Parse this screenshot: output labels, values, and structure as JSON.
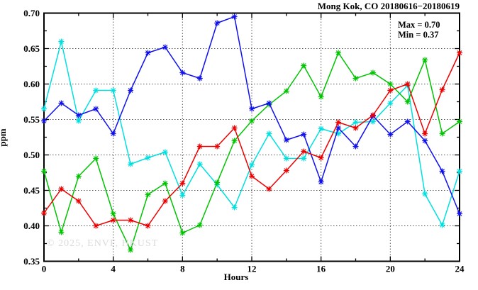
{
  "title": "Mong Kok, CO 20180616−20180619",
  "legend": {
    "max_label": "Max = 0.70",
    "min_label": "Min = 0.37"
  },
  "watermark": "© 2025, ENVF, HKUST",
  "chart_data": {
    "type": "line",
    "title": "Mong Kok, CO 20180616−20180619",
    "xlabel": "Hours",
    "ylabel": "ppm",
    "xlim": [
      0,
      24
    ],
    "ylim": [
      0.35,
      0.7
    ],
    "grid": true,
    "legend_position": "top-right-inside",
    "annotations": [
      "Max = 0.70",
      "Min = 0.37"
    ],
    "xticks": [
      0,
      4,
      8,
      12,
      16,
      20,
      24
    ],
    "xtick_labels": [
      "0",
      "4",
      "8",
      "12",
      "16",
      "20",
      "24"
    ],
    "xminor_ticks": [
      2,
      6,
      10,
      14,
      18,
      22
    ],
    "yticks": [
      0.35,
      0.4,
      0.45,
      0.5,
      0.55,
      0.6,
      0.65,
      0.7
    ],
    "ytick_labels": [
      "0.35",
      "0.40",
      "0.45",
      "0.50",
      "0.55",
      "0.60",
      "0.65",
      "0.70"
    ],
    "yminor_ticks": [
      0.375,
      0.425,
      0.475,
      0.525,
      0.575,
      0.625,
      0.675
    ],
    "x": [
      0,
      1,
      2,
      3,
      4,
      5,
      6,
      7,
      8,
      9,
      10,
      11,
      12,
      13,
      14,
      15,
      16,
      17,
      18,
      19,
      20,
      21,
      22,
      23,
      24
    ],
    "series": [
      {
        "name": "series-cyan",
        "color": "#00e0e0",
        "values": [
          0.565,
          0.66,
          0.548,
          0.591,
          0.591,
          0.487,
          0.496,
          0.504,
          0.443,
          0.487,
          0.458,
          0.426,
          0.486,
          0.53,
          0.495,
          0.495,
          0.537,
          0.53,
          0.546,
          0.547,
          0.573,
          0.598,
          0.445,
          0.401,
          0.477
        ]
      },
      {
        "name": "series-green",
        "color": "#00c400",
        "values": [
          0.477,
          0.391,
          0.47,
          0.495,
          0.417,
          0.366,
          0.444,
          0.46,
          0.39,
          0.401,
          0.461,
          0.52,
          0.548,
          0.571,
          0.59,
          0.626,
          0.582,
          0.644,
          0.608,
          0.616,
          0.6,
          0.575,
          0.634,
          0.53,
          0.547
        ]
      },
      {
        "name": "series-blue",
        "color": "#1010ee",
        "values": [
          0.548,
          0.573,
          0.556,
          0.565,
          0.53,
          0.591,
          0.644,
          0.652,
          0.616,
          0.608,
          0.686,
          0.695,
          0.565,
          0.573,
          0.521,
          0.529,
          0.462,
          0.538,
          0.512,
          0.555,
          0.529,
          0.547,
          0.52,
          0.477,
          0.417
        ]
      },
      {
        "name": "series-red",
        "color": "#ee0000",
        "values": [
          0.418,
          0.452,
          0.435,
          0.4,
          0.408,
          0.408,
          0.4,
          0.435,
          0.46,
          0.512,
          0.512,
          0.538,
          0.47,
          0.452,
          0.478,
          0.505,
          0.496,
          0.546,
          0.538,
          0.556,
          0.591,
          0.6,
          0.53,
          0.592,
          0.644
        ]
      }
    ]
  }
}
